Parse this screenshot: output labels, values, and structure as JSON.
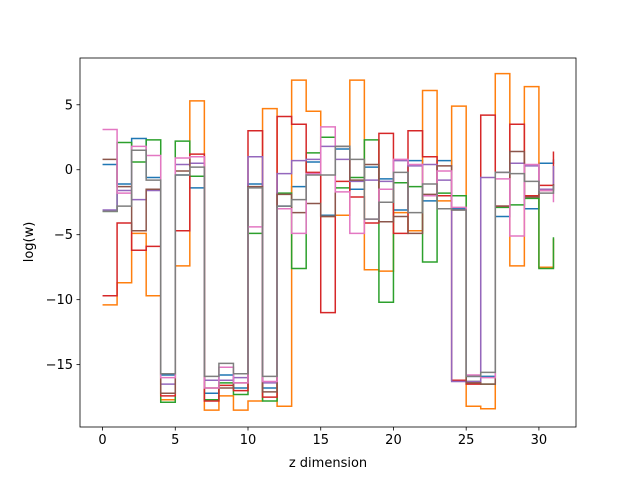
{
  "chart_data": {
    "type": "line",
    "step": "post",
    "xlabel": "z dimension",
    "ylabel": "log(w)",
    "xlim": [
      -1.55,
      32.55
    ],
    "ylim": [
      -19.8,
      8.6
    ],
    "xticks": [
      0,
      5,
      10,
      15,
      20,
      25,
      30
    ],
    "yticks": [
      5,
      0,
      -5,
      -10,
      -15
    ],
    "grid": false,
    "colors": [
      "#1f77b4",
      "#ff7f0e",
      "#2ca02c",
      "#d62728",
      "#9467bd",
      "#8c564b",
      "#e377c2",
      "#7f7f7f"
    ],
    "x": [
      0,
      1,
      2,
      3,
      4,
      5,
      6,
      7,
      8,
      9,
      10,
      11,
      12,
      13,
      14,
      15,
      16,
      17,
      18,
      19,
      20,
      21,
      22,
      23,
      24,
      25,
      26,
      27,
      28,
      29,
      30,
      31
    ],
    "series": [
      {
        "values": [
          0.4,
          -1.1,
          2.4,
          -0.6,
          -15.8,
          -0.4,
          -1.4,
          -17.2,
          -15.8,
          -16.8,
          -1.1,
          -16.8,
          -2.8,
          -1.3,
          0.6,
          -3.5,
          1.6,
          -1.5,
          0.2,
          -0.7,
          -3.1,
          0.7,
          -2.4,
          0.7,
          -3.0,
          -15.9,
          -15.9,
          -3.6,
          0.5,
          -3.0,
          0.5,
          0.8
        ]
      },
      {
        "values": [
          -10.4,
          -8.7,
          -4.9,
          -9.7,
          -17.7,
          -7.4,
          5.3,
          -18.5,
          -17.4,
          -18.5,
          -17.8,
          4.7,
          -18.2,
          6.9,
          4.5,
          -3.6,
          -3.5,
          6.9,
          -7.7,
          -7.8,
          -3.3,
          -4.7,
          6.1,
          -2.4,
          4.9,
          -18.2,
          -18.4,
          7.4,
          -7.4,
          6.4,
          -7.5,
          -5.3
        ]
      },
      {
        "values": [
          -3.2,
          2.1,
          0.6,
          2.3,
          -17.9,
          2.2,
          -0.5,
          -17.7,
          -16.4,
          -17.3,
          -4.9,
          -17.8,
          -1.8,
          -7.6,
          1.3,
          2.5,
          -1.4,
          -0.6,
          2.3,
          -10.2,
          -1.0,
          -1.3,
          -7.1,
          -1.8,
          -2.0,
          -16.3,
          -16.5,
          -2.9,
          -2.7,
          -2.2,
          -7.6,
          -5.2
        ]
      },
      {
        "values": [
          -9.7,
          -4.1,
          -6.2,
          -5.9,
          -17.4,
          -4.7,
          1.2,
          -17.8,
          -16.6,
          -17.0,
          3.0,
          -17.5,
          4.1,
          3.5,
          -0.2,
          -11.0,
          -0.9,
          -2.1,
          -4.1,
          2.8,
          -4.9,
          3.0,
          1.0,
          -2.0,
          -16.2,
          -16.5,
          4.2,
          -2.8,
          3.5,
          -2.0,
          -1.2,
          1.4
        ]
      },
      {
        "values": [
          -3.1,
          -1.6,
          -2.3,
          -1.6,
          -16.5,
          0.4,
          0.5,
          -16.2,
          -16.2,
          -16.0,
          1.0,
          -16.4,
          -0.3,
          0.7,
          0.8,
          1.8,
          0.8,
          -0.9,
          -0.8,
          -0.9,
          0.7,
          0.3,
          0.4,
          -0.8,
          -16.3,
          -16.3,
          -0.6,
          -0.2,
          0.5,
          0.3,
          -1.5,
          0.3
        ]
      },
      {
        "values": [
          0.8,
          -1.3,
          -4.7,
          -1.5,
          -17.2,
          -0.1,
          1.0,
          -16.8,
          -16.8,
          -16.4,
          -1.3,
          -17.1,
          -1.9,
          -3.3,
          -2.6,
          -3.6,
          1.8,
          -0.8,
          0.4,
          -4.0,
          -3.6,
          -4.9,
          -1.9,
          0.3,
          -3.1,
          -16.4,
          -16.5,
          -2.8,
          1.4,
          -2.1,
          -1.6,
          -1.1
        ]
      },
      {
        "values": [
          3.1,
          -1.8,
          1.8,
          1.1,
          -16.0,
          0.9,
          1.0,
          -16.8,
          -15.2,
          -16.4,
          -4.4,
          -16.3,
          -3.0,
          -4.9,
          -0.3,
          3.3,
          -1.7,
          -4.9,
          -3.8,
          -1.5,
          0.8,
          0.4,
          -2.0,
          -0.1,
          -2.9,
          -15.8,
          -16.0,
          -0.7,
          -5.1,
          0.4,
          -1.6,
          -2.5
        ]
      },
      {
        "values": [
          -3.2,
          -2.8,
          1.5,
          -0.8,
          -15.7,
          -0.4,
          0.2,
          -15.9,
          -14.9,
          -15.7,
          -1.4,
          -15.9,
          -2.8,
          -2.3,
          -0.4,
          -0.4,
          1.8,
          0.8,
          -3.8,
          -2.5,
          -0.2,
          -3.3,
          -1.1,
          -3.0,
          -3.1,
          -15.9,
          -15.6,
          -0.2,
          -0.3,
          -0.9,
          -1.8,
          -1.2
        ]
      }
    ]
  }
}
